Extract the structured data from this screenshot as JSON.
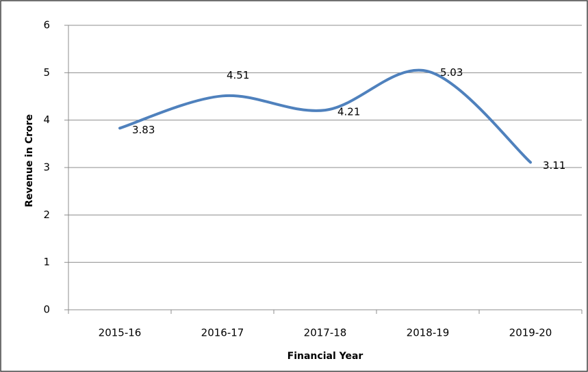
{
  "chart_data": {
    "type": "line",
    "x_label": "Financial Year",
    "y_label": "Revenue in Crore",
    "categories": [
      "2015-16",
      "2016-17",
      "2017-18",
      "2018-19",
      "2019-20"
    ],
    "values": [
      3.83,
      4.51,
      4.21,
      5.03,
      3.11
    ],
    "color": "#4f81bd",
    "smooth": true,
    "ylim": [
      0,
      6
    ],
    "yticks": [
      0,
      1,
      2,
      3,
      4,
      5,
      6
    ],
    "grid": true
  }
}
